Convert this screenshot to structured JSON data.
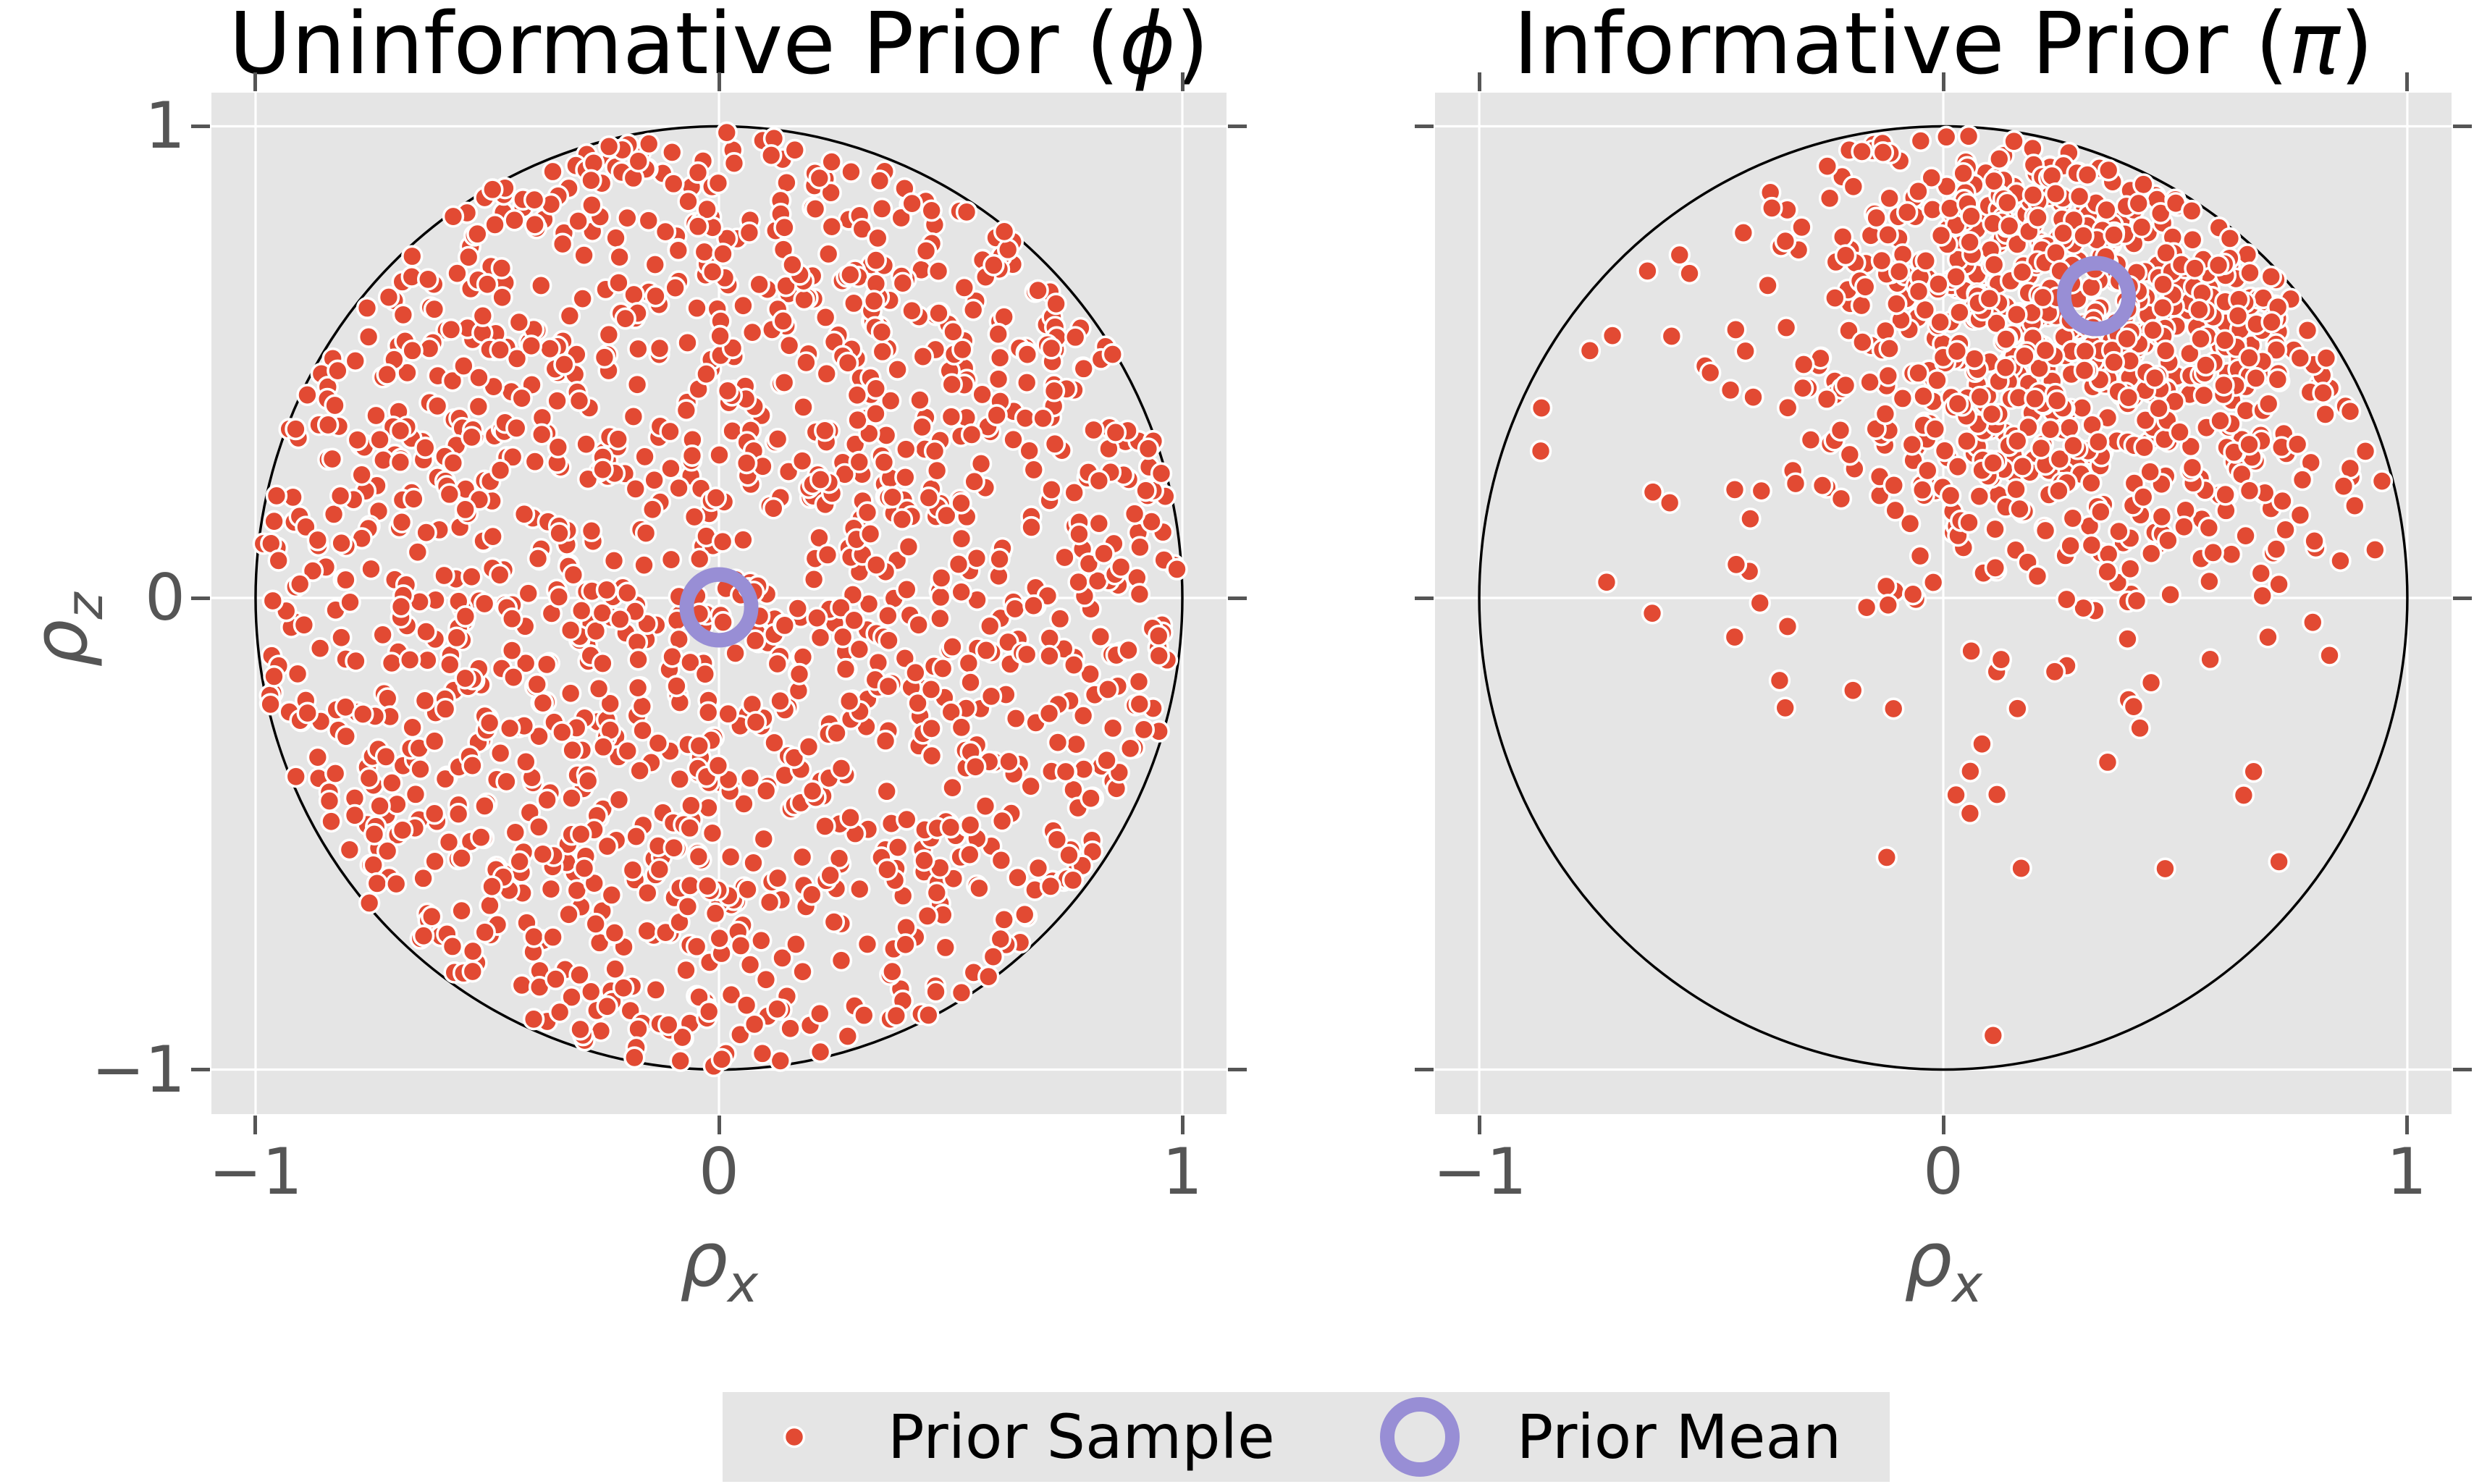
{
  "style": {
    "figure_bg": "#ffffff",
    "panel_bg": "#e5e5e5",
    "grid_color": "#ffffff",
    "tick_color": "#555555",
    "tick_label_color": "#555555",
    "title_color": "#000000",
    "sample_color": "#e24a33",
    "sample_edge_color": "#ffffff",
    "mean_ring_color": "#988ed5",
    "boundary_color": "#000000"
  },
  "chart_data": [
    {
      "type": "scatter",
      "title": "Uninformative Prior (ϕ)",
      "title_prefix": "Uninformative Prior (",
      "title_symbol": "ϕ",
      "title_suffix": ")",
      "xlabel": "ρx",
      "ylabel": "ρz",
      "x_symbol": "ρ",
      "x_sub": "x",
      "y_symbol": "ρ",
      "y_sub": "z",
      "xlim": [
        -1.1,
        1.1
      ],
      "ylim": [
        -1.07,
        1.09
      ],
      "xticks": [
        -1,
        0,
        1
      ],
      "yticks": [
        1,
        0,
        -1
      ],
      "xtick_labels": [
        "−1",
        "0",
        "1"
      ],
      "ytick_labels": [
        "1",
        "0",
        "−1"
      ],
      "grid": true,
      "legend_position": "figure-bottom",
      "boundary_circle": {
        "center": [
          0,
          0
        ],
        "radius": 1
      },
      "series": [
        {
          "name": "Prior Sample",
          "marker": "dot",
          "n": 1500,
          "seed": 11,
          "distribution": "uniform on unit disk"
        },
        {
          "name": "Prior Mean",
          "marker": "open-ring",
          "points": [
            [
              0,
              -0.02
            ]
          ]
        }
      ]
    },
    {
      "type": "scatter",
      "title": "Informative Prior (π)",
      "title_prefix": "Informative Prior (",
      "title_symbol": "π",
      "title_suffix": ")",
      "xlabel": "ρx",
      "ylabel": "",
      "x_symbol": "ρ",
      "x_sub": "x",
      "xlim": [
        -1.1,
        1.1
      ],
      "ylim": [
        -1.07,
        1.09
      ],
      "xticks": [
        -1,
        0,
        1
      ],
      "yticks": [
        1,
        0,
        -1
      ],
      "xtick_labels": [
        "−1",
        "0",
        "1"
      ],
      "ytick_labels": [],
      "grid": true,
      "legend_position": "figure-bottom",
      "boundary_circle": {
        "center": [
          0,
          0
        ],
        "radius": 1
      },
      "series": [
        {
          "name": "Prior Sample",
          "marker": "dot",
          "n": 900,
          "seed": 99,
          "distribution": "gaussian mixture centred on prior mean, truncated to unit disk",
          "mean": [
            0.33,
            0.64
          ],
          "components": [
            {
              "w": 0.8,
              "sd": 0.33
            },
            {
              "w": 0.2,
              "sd": 0.75
            }
          ]
        },
        {
          "name": "Prior Mean",
          "marker": "open-ring",
          "points": [
            [
              0.33,
              0.64
            ]
          ]
        }
      ]
    }
  ],
  "legend": {
    "items": [
      {
        "label": "Prior Sample",
        "marker": "dot"
      },
      {
        "label": "Prior Mean",
        "marker": "open-ring"
      }
    ]
  }
}
